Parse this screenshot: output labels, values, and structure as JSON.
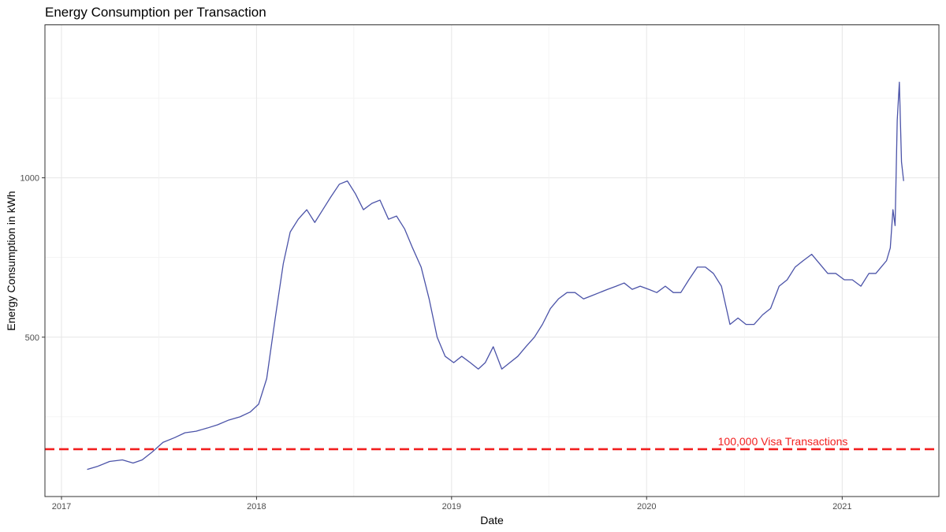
{
  "chart_data": {
    "type": "line",
    "title": "Energy Consumption per Transaction",
    "xlabel": "Date",
    "ylabel": "Energy Consumption in kWh",
    "x_ticks": [
      "2017",
      "2018",
      "2019",
      "2020",
      "2021"
    ],
    "y_ticks": [
      "500",
      "1000"
    ],
    "xlim": [
      "2016-12-01",
      "2021-07-01"
    ],
    "ylim": [
      0,
      1480
    ],
    "grid": true,
    "reference_line": {
      "value": 148.63,
      "label": "100,000 Visa Transactions",
      "color": "#f21f1f",
      "style": "dashed"
    },
    "series": [
      {
        "color": "#4b53a8",
        "x": [
          "2017-02-18",
          "2017-03-10",
          "2017-04-01",
          "2017-04-25",
          "2017-05-15",
          "2017-06-01",
          "2017-06-20",
          "2017-07-10",
          "2017-08-01",
          "2017-08-20",
          "2017-09-10",
          "2017-10-01",
          "2017-10-20",
          "2017-11-10",
          "2017-12-01",
          "2017-12-20",
          "2018-01-05",
          "2018-01-20",
          "2018-02-05",
          "2018-02-20",
          "2018-03-05",
          "2018-03-20",
          "2018-04-05",
          "2018-04-20",
          "2018-05-05",
          "2018-05-20",
          "2018-06-05",
          "2018-06-20",
          "2018-07-05",
          "2018-07-20",
          "2018-08-05",
          "2018-08-20",
          "2018-09-05",
          "2018-09-20",
          "2018-10-05",
          "2018-10-20",
          "2018-11-05",
          "2018-11-20",
          "2018-12-05",
          "2018-12-20",
          "2019-01-05",
          "2019-01-20",
          "2019-02-05",
          "2019-02-20",
          "2019-03-05",
          "2019-03-20",
          "2019-04-05",
          "2019-04-20",
          "2019-05-05",
          "2019-05-20",
          "2019-06-05",
          "2019-06-20",
          "2019-07-05",
          "2019-07-20",
          "2019-08-05",
          "2019-08-20",
          "2019-09-05",
          "2019-09-20",
          "2019-10-05",
          "2019-10-20",
          "2019-11-05",
          "2019-11-20",
          "2019-12-05",
          "2019-12-20",
          "2020-01-05",
          "2020-01-20",
          "2020-02-05",
          "2020-02-20",
          "2020-03-05",
          "2020-03-20",
          "2020-04-05",
          "2020-04-20",
          "2020-05-05",
          "2020-05-20",
          "2020-06-05",
          "2020-06-20",
          "2020-07-05",
          "2020-07-20",
          "2020-08-05",
          "2020-08-20",
          "2020-09-05",
          "2020-09-20",
          "2020-10-05",
          "2020-10-20",
          "2020-11-05",
          "2020-11-20",
          "2020-12-05",
          "2020-12-20",
          "2021-01-05",
          "2021-01-20",
          "2021-02-05",
          "2021-02-20",
          "2021-03-05",
          "2021-03-15",
          "2021-03-25",
          "2021-04-01",
          "2021-04-06",
          "2021-04-10",
          "2021-04-14",
          "2021-04-18",
          "2021-04-22",
          "2021-04-26"
        ],
        "y": [
          85,
          95,
          110,
          115,
          105,
          115,
          140,
          170,
          185,
          200,
          205,
          215,
          225,
          240,
          250,
          265,
          290,
          370,
          560,
          730,
          830,
          870,
          900,
          860,
          900,
          940,
          980,
          990,
          950,
          900,
          920,
          930,
          870,
          880,
          840,
          780,
          720,
          620,
          500,
          440,
          420,
          440,
          420,
          400,
          420,
          470,
          400,
          420,
          440,
          470,
          500,
          540,
          590,
          620,
          640,
          640,
          620,
          630,
          640,
          650,
          660,
          670,
          650,
          660,
          650,
          640,
          660,
          640,
          640,
          680,
          720,
          720,
          700,
          660,
          540,
          560,
          540,
          540,
          570,
          590,
          660,
          680,
          720,
          740,
          760,
          730,
          700,
          700,
          680,
          680,
          660,
          700,
          700,
          720,
          740,
          780,
          900,
          850,
          1180,
          1300,
          1050,
          990
        ]
      }
    ]
  }
}
